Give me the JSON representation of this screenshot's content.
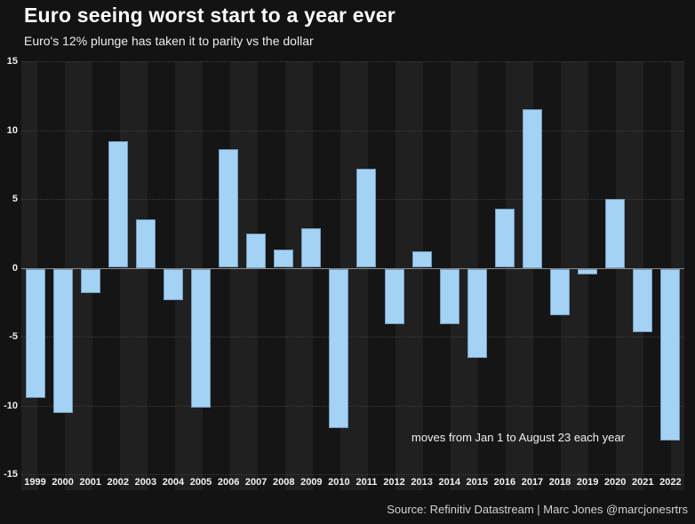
{
  "header": {
    "title": "Euro seeing worst start to a year ever",
    "subtitle": "Euro's 12% plunge has taken it to parity vs the dollar"
  },
  "annotation": "moves from Jan 1 to August 23 each year",
  "source": "Source: Refinitiv Datastream | Marc Jones @marcjonesrtrs",
  "colors": {
    "background": "#131313",
    "stripe_light": "#202020",
    "stripe_dark": "#151515",
    "bar": "#a3d2f4",
    "gridline": "#3e3e3e",
    "zero_line": "#8a8a8a",
    "text": "#f2f2f2"
  },
  "chart_data": {
    "type": "bar",
    "title": "Euro seeing worst start to a year ever",
    "subtitle": "Euro's 12% plunge has taken it to parity vs the dollar",
    "categories": [
      "1999",
      "2000",
      "2001",
      "2002",
      "2003",
      "2004",
      "2005",
      "2006",
      "2007",
      "2008",
      "2009",
      "2010",
      "2011",
      "2012",
      "2013",
      "2014",
      "2015",
      "2016",
      "2017",
      "2018",
      "2019",
      "2020",
      "2021",
      "2022"
    ],
    "values": [
      -9.4,
      -10.5,
      -1.8,
      9.2,
      3.5,
      -2.3,
      -10.1,
      8.6,
      2.5,
      1.3,
      2.9,
      -11.6,
      7.2,
      -4.0,
      1.2,
      -4.0,
      -6.5,
      4.3,
      11.5,
      -3.4,
      -0.4,
      5.0,
      -4.6,
      -12.5
    ],
    "xlabel": "",
    "ylabel": "",
    "ylim": [
      -15,
      15
    ],
    "yticks": [
      15,
      10,
      5,
      0,
      -5,
      -10,
      -15
    ],
    "grid": "horizontal-dotted",
    "legend": "none",
    "annotation": "moves from Jan 1 to August 23 each year",
    "units": "% move Jan 1 to Aug 23 each year"
  }
}
